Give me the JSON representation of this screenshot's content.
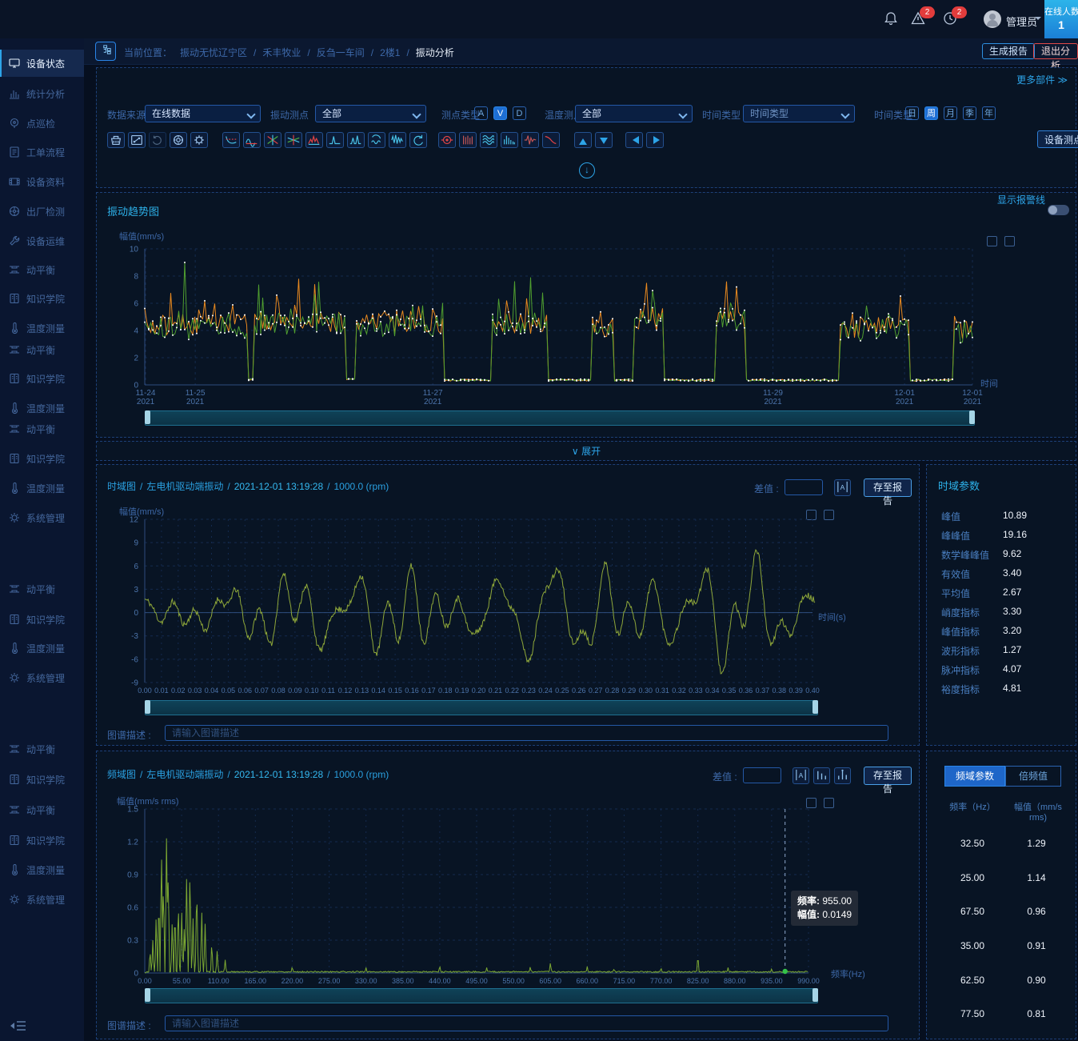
{
  "colors": {
    "accent": "#2da4e8",
    "orange": "#e8891f",
    "green": "#4f9e2f",
    "olive": "#8fa83a",
    "red": "#e23c3c",
    "cyan_box": "#2db4ea"
  },
  "topbar": {
    "admin": "管理员",
    "online_label": "在线人数",
    "online_count": "1",
    "alarm_badge": "2",
    "history_badge": "2"
  },
  "breadcrumb": {
    "prefix": "当前位置：",
    "separator": "/",
    "path": [
      "振动无忧辽宁区",
      "禾丰牧业",
      "反刍一车间",
      "2楼1",
      "振动分析"
    ]
  },
  "actions": {
    "generate_report": "生成报告",
    "exit_analysis": "退出分析",
    "more_widgets": "更多部件",
    "more_chevron": "≫",
    "device_points": "设备测点",
    "expand": "展开",
    "expand_chevron": "∨",
    "save_report": "存至报告",
    "diff_label": "差值 :",
    "desc_label": "图谱描述 :",
    "desc_placeholder": "请输入图谱描述",
    "show_alarm_line": "显示报警线"
  },
  "sidebar": {
    "items": [
      {
        "label": "设备状态",
        "icon": "monitor",
        "active": true
      },
      {
        "label": "统计分析",
        "icon": "chart",
        "active": false
      },
      {
        "label": "点巡检",
        "icon": "target",
        "active": false
      },
      {
        "label": "工单流程",
        "icon": "doc",
        "active": false
      },
      {
        "label": "设备资料",
        "icon": "film",
        "active": false
      },
      {
        "label": "出厂检测",
        "icon": "wheel",
        "active": false
      },
      {
        "label": "设备运维",
        "icon": "wrench",
        "active": false
      },
      {
        "label": "动平衡",
        "icon": "balance",
        "active": false
      },
      {
        "label": "知识学院",
        "icon": "book",
        "active": false
      },
      {
        "label": "温度测量",
        "icon": "thermo",
        "active": false
      },
      {
        "label": "动平衡",
        "icon": "balance",
        "active": false
      },
      {
        "label": "知识学院",
        "icon": "book",
        "active": false
      },
      {
        "label": "温度测量",
        "icon": "thermo",
        "active": false
      },
      {
        "label": "动平衡",
        "icon": "balance",
        "active": false
      },
      {
        "label": "知识学院",
        "icon": "book",
        "active": false
      },
      {
        "label": "温度测量",
        "icon": "thermo",
        "active": false
      },
      {
        "label": "系统管理",
        "icon": "gear",
        "active": false
      },
      {
        "label": "动平衡",
        "icon": "balance",
        "active": false
      },
      {
        "label": "知识学院",
        "icon": "book",
        "active": false
      },
      {
        "label": "温度测量",
        "icon": "thermo",
        "active": false
      },
      {
        "label": "系统管理",
        "icon": "gear",
        "active": false
      },
      {
        "label": "动平衡",
        "icon": "balance",
        "active": false
      },
      {
        "label": "知识学院",
        "icon": "book",
        "active": false
      },
      {
        "label": "动平衡",
        "icon": "balance",
        "active": false
      },
      {
        "label": "知识学院",
        "icon": "book",
        "active": false
      },
      {
        "label": "温度测量",
        "icon": "thermo",
        "active": false
      },
      {
        "label": "系统管理",
        "icon": "gear",
        "active": false
      }
    ]
  },
  "filters": {
    "data_source": {
      "label": "数据来源",
      "value": "在线数据"
    },
    "vib_point": {
      "label": "振动测点",
      "value": "全部"
    },
    "point_type": {
      "label": "测点类型",
      "options": [
        "A",
        "V",
        "D"
      ],
      "selected": "V"
    },
    "temp_point": {
      "label": "温度测点",
      "value": "全部"
    },
    "time_type_select": {
      "label": "时间类型",
      "value": "时间类型"
    },
    "time_type_seg": {
      "label": "时间类型",
      "options": [
        "日",
        "周",
        "月",
        "季",
        "年"
      ],
      "selected": "周"
    }
  },
  "toolbar": {
    "icons": [
      {
        "name": "basket",
        "group": 1
      },
      {
        "name": "zoom-fit",
        "group": 1
      },
      {
        "name": "rotate",
        "group": 1,
        "disabled": true
      },
      {
        "name": "bearing",
        "group": 1
      },
      {
        "name": "gear",
        "group": 1
      },
      {
        "name": "bode",
        "group": 2
      },
      {
        "name": "envelope",
        "group": 2
      },
      {
        "name": "axis-cross",
        "group": 2
      },
      {
        "name": "axis-cross2",
        "group": 2
      },
      {
        "name": "peak-red",
        "group": 2
      },
      {
        "name": "single-peak",
        "group": 2
      },
      {
        "name": "double-peak",
        "group": 2
      },
      {
        "name": "rotor-wave",
        "group": 2
      },
      {
        "name": "waveform",
        "group": 2
      },
      {
        "name": "undo",
        "group": 2
      },
      {
        "name": "orbit",
        "group": 3
      },
      {
        "name": "cascade",
        "group": 3
      },
      {
        "name": "lissajous",
        "group": 3
      },
      {
        "name": "spectrum-bars",
        "group": 3
      },
      {
        "name": "impulse",
        "group": 3
      },
      {
        "name": "trend-red",
        "group": 3
      },
      {
        "name": "up",
        "group": 4
      },
      {
        "name": "down",
        "group": 4
      },
      {
        "name": "prev",
        "group": 5
      },
      {
        "name": "next",
        "group": 5
      }
    ]
  },
  "trend": {
    "title": "振动趋势图",
    "alarm_toggle_on": false
  },
  "time_domain": {
    "chart_type": "时域图",
    "point": "左电机驱动端振动",
    "timestamp": "2021-12-01 13:19:28",
    "rpm": "1000.0 (rpm)",
    "params_title": "时域参数",
    "params": [
      {
        "label": "峰值",
        "value": "10.89"
      },
      {
        "label": "峰峰值",
        "value": "19.16"
      },
      {
        "label": "数学峰峰值",
        "value": "9.62"
      },
      {
        "label": "有效值",
        "value": "3.40"
      },
      {
        "label": "平均值",
        "value": "2.67"
      },
      {
        "label": "峭度指标",
        "value": "3.30"
      },
      {
        "label": "峰值指标",
        "value": "3.20"
      },
      {
        "label": "波形指标",
        "value": "1.27"
      },
      {
        "label": "脉冲指标",
        "value": "4.07"
      },
      {
        "label": "裕度指标",
        "value": "4.81"
      }
    ]
  },
  "freq_domain": {
    "chart_type": "频域图",
    "point": "左电机驱动端振动",
    "timestamp": "2021-12-01 13:19:28",
    "rpm": "1000.0 (rpm)",
    "tabs": [
      "频域参数",
      "倍频值"
    ],
    "active_tab": "频域参数",
    "table": {
      "col1": "频率（Hz）",
      "col2": "幅值（mm/s rms)",
      "rows": [
        [
          "32.50",
          "1.29"
        ],
        [
          "25.00",
          "1.14"
        ],
        [
          "67.50",
          "0.96"
        ],
        [
          "35.00",
          "0.91"
        ],
        [
          "62.50",
          "0.90"
        ],
        [
          "77.50",
          "0.81"
        ]
      ]
    },
    "tooltip": {
      "f_label": "频率:",
      "f_value": "955.00",
      "a_label": "幅值:",
      "a_value": "0.0149"
    }
  },
  "chart_data": [
    {
      "id": "trend",
      "type": "line",
      "title": "振动趋势图",
      "ylabel": "幅值(mm/s)",
      "xlabel": "时间",
      "ylim": [
        0,
        10
      ],
      "ystep": 2,
      "grid": true,
      "series": [
        {
          "name": "orange",
          "color": "#e8891f"
        },
        {
          "name": "green",
          "color": "#4f9e2f"
        }
      ],
      "x_ticks": [
        {
          "pos": 0.001,
          "line1": "11-24",
          "line2": "2021"
        },
        {
          "pos": 0.061,
          "line1": "11-25",
          "line2": "2021"
        },
        {
          "pos": 0.348,
          "line1": "11-27",
          "line2": "2021"
        },
        {
          "pos": 0.759,
          "line1": "11-29",
          "line2": "2021"
        },
        {
          "pos": 0.918,
          "line1": "12-01",
          "line2": "2021"
        },
        {
          "pos": 1.0,
          "line1": "12-01",
          "line2": "2021"
        }
      ],
      "segments": [
        [
          0.0,
          0.125,
          4.3,
          2.2
        ],
        [
          0.125,
          0.131,
          0.4,
          0
        ],
        [
          0.131,
          0.242,
          4.6,
          3.2
        ],
        [
          0.242,
          0.256,
          0.4,
          0
        ],
        [
          0.256,
          0.362,
          4.5,
          2.0
        ],
        [
          0.362,
          0.42,
          0.35,
          0
        ],
        [
          0.42,
          0.486,
          4.6,
          3.3
        ],
        [
          0.486,
          0.54,
          0.35,
          0
        ],
        [
          0.54,
          0.566,
          4.4,
          1.5
        ],
        [
          0.566,
          0.59,
          0.35,
          0
        ],
        [
          0.59,
          0.626,
          4.8,
          2.7
        ],
        [
          0.626,
          0.69,
          0.35,
          0
        ],
        [
          0.69,
          0.726,
          4.9,
          2.7
        ],
        [
          0.726,
          0.84,
          0.35,
          0
        ],
        [
          0.84,
          0.925,
          4.2,
          1.6
        ],
        [
          0.925,
          0.976,
          0.35,
          0
        ],
        [
          0.976,
          1.0,
          4.0,
          1.2
        ]
      ],
      "spikes": [
        {
          "x": 0.048,
          "v": 9.0,
          "series": "green"
        },
        {
          "x": 0.185,
          "v": 7.8,
          "series": "orange"
        },
        {
          "x": 0.205,
          "v": 7.4,
          "series": "orange"
        },
        {
          "x": 0.467,
          "v": 7.9,
          "series": "green"
        },
        {
          "x": 0.607,
          "v": 7.5,
          "series": "orange"
        },
        {
          "x": 0.703,
          "v": 7.6,
          "series": "orange"
        },
        {
          "x": 0.715,
          "v": 7.2,
          "series": "orange"
        },
        {
          "x": 0.982,
          "v": 4.6,
          "series": "orange"
        }
      ],
      "noise_seed": 7
    },
    {
      "id": "time",
      "type": "line",
      "ylabel": "幅值(mm/s)",
      "xlabel": "时间(s)",
      "ylim": [
        -9,
        12
      ],
      "ystep": 3,
      "xlim": [
        0,
        0.4
      ],
      "xstep": 0.01,
      "color": "#8fa83a",
      "grid": true,
      "components": [
        {
          "freq": 25,
          "amp": 1.61
        },
        {
          "freq": 32.5,
          "amp": 1.82
        },
        {
          "freq": 35,
          "amp": 1.29
        },
        {
          "freq": 62.5,
          "amp": 1.27
        },
        {
          "freq": 67.5,
          "amp": 1.36
        },
        {
          "freq": 77.5,
          "amp": 1.15
        }
      ],
      "phases": [
        0.5,
        2.1,
        4.0,
        1.2,
        3.3,
        5.5
      ],
      "scale": 1.15,
      "noise_amp": 0.8,
      "noise_seed": 11
    },
    {
      "id": "freq",
      "type": "line",
      "ylabel": "幅值(mm/s rms)",
      "xlabel": "频率(Hz)",
      "ylim": [
        0,
        1.5
      ],
      "ystep": 0.3,
      "xlim": [
        0,
        990
      ],
      "xstep": 55,
      "color": "#7ca832",
      "grid": true,
      "peaks": [
        [
          25,
          1.14
        ],
        [
          32.5,
          1.29
        ],
        [
          35,
          0.91
        ],
        [
          62.5,
          0.9
        ],
        [
          67.5,
          0.96
        ],
        [
          77.5,
          0.81
        ]
      ],
      "minor_peaks": [
        [
          8,
          0.22
        ],
        [
          12,
          0.3
        ],
        [
          17,
          0.55
        ],
        [
          21,
          0.75
        ],
        [
          28,
          0.9
        ],
        [
          41,
          0.5
        ],
        [
          45,
          0.62
        ],
        [
          50,
          0.7
        ],
        [
          55,
          0.62
        ],
        [
          59,
          0.45
        ],
        [
          72,
          0.5
        ],
        [
          85,
          0.62
        ],
        [
          90,
          0.45
        ],
        [
          100,
          0.3
        ],
        [
          108,
          0.2
        ],
        [
          120,
          0.12
        ],
        [
          220,
          0.06
        ],
        [
          330,
          0.05
        ],
        [
          440,
          0.07
        ],
        [
          510,
          0.05
        ],
        [
          575,
          0.06
        ],
        [
          605,
          0.1
        ],
        [
          660,
          0.06
        ],
        [
          700,
          0.04
        ],
        [
          770,
          0.05
        ],
        [
          825,
          0.17
        ],
        [
          870,
          0.05
        ],
        [
          935,
          0.04
        ]
      ],
      "noise_floor": 0.012,
      "noise_seed": 5,
      "marker": {
        "freq": 955,
        "amp": 0.0149
      }
    }
  ]
}
